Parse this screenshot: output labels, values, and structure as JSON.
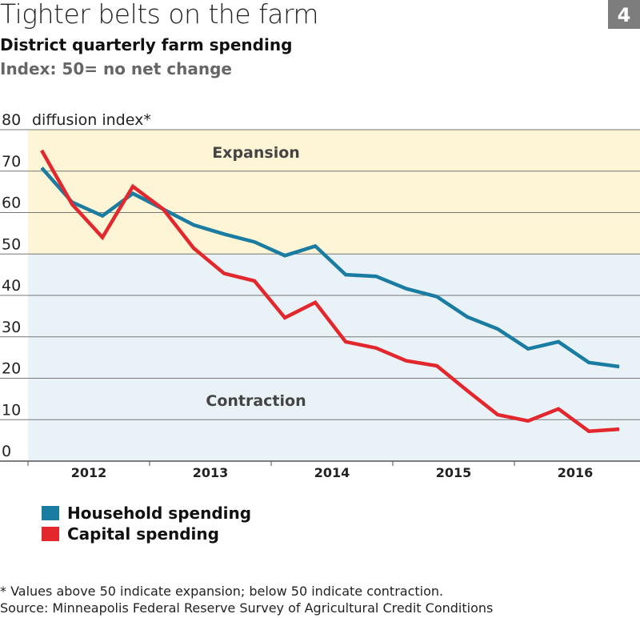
{
  "header": {
    "title": "Tighter belts on the farm",
    "badge": "4",
    "subtitle": "District quarterly farm spending",
    "subtitle2": "Index: 50= no net change"
  },
  "colors": {
    "household": "#1a7ca0",
    "capital": "#e2272d",
    "expansion_band": "#fdf5d6",
    "contraction_band": "#e8f2f7",
    "badge": "#7d7d7d"
  },
  "chart_data": {
    "type": "line",
    "ylabel": "diffusion index*",
    "ylim": [
      0,
      80
    ],
    "yticks": [
      0,
      10,
      20,
      30,
      40,
      50,
      60,
      70,
      80
    ],
    "x": [
      "2012Q1",
      "2012Q2",
      "2012Q3",
      "2012Q4",
      "2013Q1",
      "2013Q2",
      "2013Q3",
      "2013Q4",
      "2014Q1",
      "2014Q2",
      "2014Q3",
      "2014Q4",
      "2015Q1",
      "2015Q2",
      "2015Q3",
      "2015Q4",
      "2016Q1",
      "2016Q2",
      "2016Q3",
      "2016Q4"
    ],
    "xtick_labels": [
      "2012",
      "2013",
      "2014",
      "2015",
      "2016"
    ],
    "grid": true,
    "bands": [
      {
        "label": "Expansion",
        "from": 50,
        "to": 80
      },
      {
        "label": "Contraction",
        "from": 0,
        "to": 50
      }
    ],
    "series": [
      {
        "name": "Household spending",
        "values": [
          70.8,
          62.5,
          59.2,
          64.6,
          60.8,
          57,
          54.8,
          52.9,
          49.6,
          51.9,
          45,
          44.6,
          41.6,
          39.7,
          34.8,
          31.9,
          27.1,
          28.8,
          23.8,
          22.8
        ]
      },
      {
        "name": "Capital spending",
        "values": [
          75,
          62,
          54,
          66.3,
          60.8,
          51.4,
          45.3,
          43.5,
          34.6,
          38.3,
          28.8,
          27.3,
          24.2,
          23,
          17,
          11.2,
          9.7,
          12.6,
          7.2,
          7.7
        ]
      }
    ],
    "legend": "bottom-left"
  },
  "footer": {
    "note": "* Values above 50 indicate expansion; below 50 indicate contraction.",
    "source": "Source: Minneapolis Federal Reserve Survey of Agricultural Credit Conditions"
  }
}
